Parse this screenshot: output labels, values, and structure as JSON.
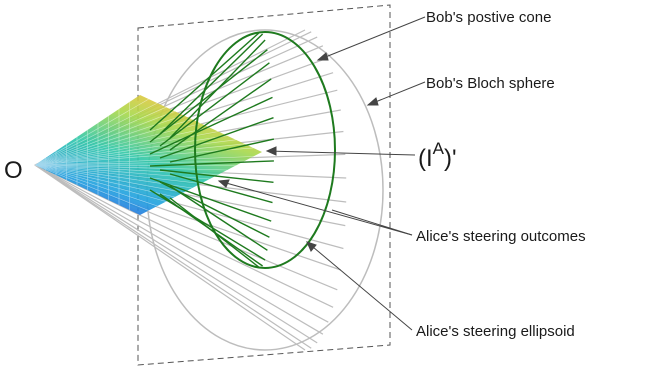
{
  "labels": {
    "origin": "O",
    "bob_cone": "Bob's postive cone",
    "bob_sphere": "Bob's Bloch sphere",
    "ia_base": "(I",
    "ia_sup": "A",
    "ia_tail": ")'",
    "alice_outcomes": "Alice's steering outcomes",
    "alice_ellipsoid": "Alice's steering ellipsoid"
  },
  "colors": {
    "cone_lines": "#bdbdbd",
    "ellipsoid": "#1e7a1e",
    "frame": "#555555",
    "leader": "#444444",
    "surface_gradient": [
      "#2b2bd6",
      "#1fa0e0",
      "#2ec7a8",
      "#a8d84a",
      "#f2c23a"
    ]
  }
}
